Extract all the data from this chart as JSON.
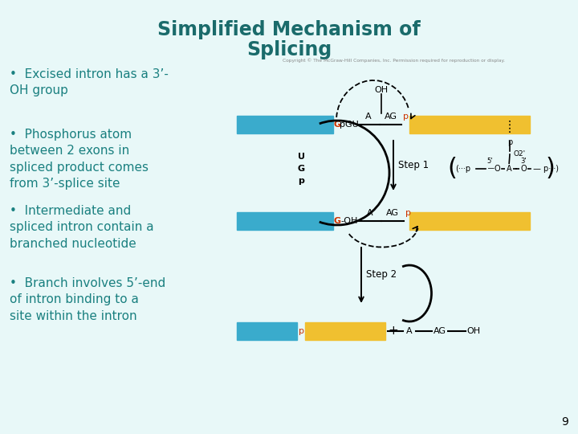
{
  "title_line1": "Simplified Mechanism of",
  "title_line2": "Splicing",
  "title_color": "#1a6b6b",
  "bg_color": "#e8f8f8",
  "bullet_color": "#1a8080",
  "bullet_points": [
    "Excised intron has a 3’-\nOH group",
    "Phosphorus atom\nbetween 2 exons in\nspliced product comes\nfrom 3’-splice site",
    "Intermediate and\nspliced intron contain a\nbranched nucleotide",
    "Branch involves 5’-end\nof intron binding to a\nsite within the intron"
  ],
  "page_number": "9",
  "bar_cyan": "#3aabcc",
  "bar_yellow": "#f0c030",
  "red_color": "#cc3300",
  "copyright": "Copyright © The McGraw-Hill Companies, Inc. Permission required for reproduction or display."
}
